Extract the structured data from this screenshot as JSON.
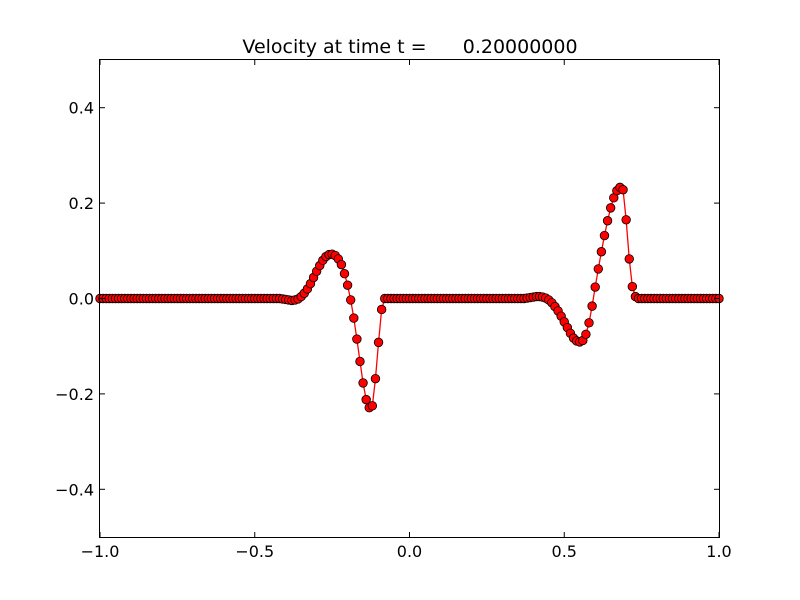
{
  "chart_data": {
    "type": "line",
    "title": "Velocity at time t =      0.20000000",
    "xlabel": "",
    "ylabel": "",
    "xlim": [
      -1.0,
      1.0
    ],
    "ylim": [
      -0.5,
      0.5
    ],
    "grid": false,
    "legend": "none",
    "x_ticks": [
      -1.0,
      -0.5,
      0.0,
      0.5,
      1.0
    ],
    "x_tick_labels": [
      "−1.0",
      "−0.5",
      "0.0",
      "0.5",
      "1.0"
    ],
    "y_ticks": [
      -0.4,
      -0.2,
      0.0,
      0.2,
      0.4
    ],
    "y_tick_labels": [
      "−0.4",
      "−0.2",
      "0.0",
      "0.2",
      "0.4"
    ],
    "series": [
      {
        "line_color": "#ff0000",
        "marker": "circle",
        "marker_face_color": "#ff0000",
        "marker_edge_color": "#000000",
        "x": [
          -1.0,
          -0.99,
          -0.98,
          -0.97,
          -0.96,
          -0.95,
          -0.94,
          -0.93,
          -0.92,
          -0.91,
          -0.9,
          -0.89,
          -0.88,
          -0.87,
          -0.86,
          -0.85,
          -0.84,
          -0.83,
          -0.82,
          -0.81,
          -0.8,
          -0.79,
          -0.78,
          -0.77,
          -0.76,
          -0.75,
          -0.74,
          -0.73,
          -0.72,
          -0.71,
          -0.7,
          -0.69,
          -0.68,
          -0.67,
          -0.66,
          -0.65,
          -0.64,
          -0.63,
          -0.62,
          -0.61,
          -0.6,
          -0.59,
          -0.58,
          -0.57,
          -0.56,
          -0.55,
          -0.54,
          -0.53,
          -0.52,
          -0.51,
          -0.5,
          -0.49,
          -0.48,
          -0.47,
          -0.46,
          -0.45,
          -0.44,
          -0.43,
          -0.42,
          -0.41,
          -0.4,
          -0.39,
          -0.38,
          -0.37,
          -0.36,
          -0.35,
          -0.34,
          -0.33,
          -0.32,
          -0.31,
          -0.3,
          -0.29,
          -0.28,
          -0.27,
          -0.26,
          -0.25,
          -0.24,
          -0.23,
          -0.22,
          -0.21,
          -0.2,
          -0.19,
          -0.18,
          -0.17,
          -0.16,
          -0.15,
          -0.14,
          -0.13,
          -0.12,
          -0.11,
          -0.1,
          -0.09,
          -0.08,
          -0.07,
          -0.06,
          -0.05,
          -0.04,
          -0.03,
          -0.02,
          -0.01,
          0.0,
          0.01,
          0.02,
          0.03,
          0.04,
          0.05,
          0.06,
          0.07,
          0.08,
          0.09,
          0.1,
          0.11,
          0.12,
          0.13,
          0.14,
          0.15,
          0.16,
          0.17,
          0.18,
          0.19,
          0.2,
          0.21,
          0.22,
          0.23,
          0.24,
          0.25,
          0.26,
          0.27,
          0.28,
          0.29,
          0.3,
          0.31,
          0.32,
          0.33,
          0.34,
          0.35,
          0.36,
          0.37,
          0.38,
          0.39,
          0.4,
          0.41,
          0.42,
          0.43,
          0.44,
          0.45,
          0.46,
          0.47,
          0.48,
          0.49,
          0.5,
          0.51,
          0.52,
          0.53,
          0.54,
          0.55,
          0.56,
          0.57,
          0.58,
          0.59,
          0.6,
          0.61,
          0.62,
          0.63,
          0.64,
          0.65,
          0.66,
          0.67,
          0.68,
          0.69,
          0.7,
          0.71,
          0.72,
          0.73,
          0.74,
          0.75,
          0.76,
          0.77,
          0.78,
          0.79,
          0.8,
          0.81,
          0.82,
          0.83,
          0.84,
          0.85,
          0.86,
          0.87,
          0.88,
          0.89,
          0.9,
          0.91,
          0.92,
          0.93,
          0.94,
          0.95,
          0.96,
          0.97,
          0.98,
          0.99,
          1.0
        ],
        "y": [
          0,
          0,
          0,
          0,
          0,
          0,
          0,
          0,
          0,
          0,
          0,
          0,
          0,
          0,
          0,
          0,
          0,
          0,
          0,
          0,
          0,
          0,
          0,
          0,
          0,
          0,
          0,
          0,
          0,
          0,
          0,
          0,
          0,
          0,
          0,
          0,
          0,
          0,
          0,
          0,
          0,
          0,
          0,
          0,
          0,
          0,
          0,
          0,
          0,
          0,
          0,
          0,
          0,
          0,
          0,
          0,
          0,
          0,
          0,
          -0.001,
          -0.002,
          -0.003,
          -0.004,
          -0.003,
          -0.001,
          0.004,
          0.011,
          0.02,
          0.031,
          0.044,
          0.057,
          0.069,
          0.08,
          0.088,
          0.092,
          0.093,
          0.09,
          0.083,
          0.071,
          0.052,
          0.028,
          -0.003,
          -0.041,
          -0.085,
          -0.132,
          -0.177,
          -0.212,
          -0.229,
          -0.225,
          -0.168,
          -0.092,
          -0.023,
          0,
          0,
          0,
          0,
          0,
          0,
          0,
          0,
          0,
          0,
          0,
          0,
          0,
          0,
          0,
          0,
          0,
          0,
          0,
          0,
          0,
          0,
          0,
          0,
          0,
          0,
          0,
          0,
          0,
          0,
          0,
          0,
          0,
          0,
          0,
          0,
          0,
          0,
          0,
          0,
          0,
          0,
          0,
          0,
          0,
          0,
          0.001,
          0.002,
          0.003,
          0.004,
          0.004,
          0.003,
          0.001,
          -0.003,
          -0.009,
          -0.017,
          -0.026,
          -0.037,
          -0.049,
          -0.061,
          -0.073,
          -0.083,
          -0.089,
          -0.091,
          -0.088,
          -0.075,
          -0.051,
          -0.016,
          0.024,
          0.062,
          0.098,
          0.132,
          0.163,
          0.19,
          0.211,
          0.226,
          0.233,
          0.228,
          0.165,
          0.083,
          0.025,
          0.004,
          0,
          0,
          0,
          0,
          0,
          0,
          0,
          0,
          0,
          0,
          0,
          0,
          0,
          0,
          0,
          0,
          0,
          0,
          0,
          0,
          0,
          0,
          0,
          0,
          0,
          0,
          0
        ]
      }
    ]
  }
}
